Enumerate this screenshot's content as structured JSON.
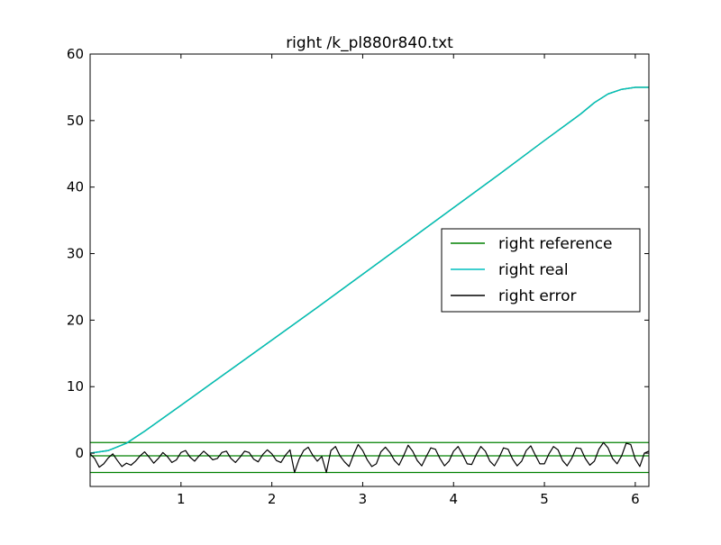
{
  "chart_data": {
    "type": "line",
    "title": "right /k_pl880r840.txt",
    "xlabel": "",
    "ylabel": "",
    "xlim": [
      0.0,
      6.15
    ],
    "ylim": [
      -5,
      60
    ],
    "xticks": [
      1,
      2,
      3,
      4,
      5,
      6
    ],
    "yticks": [
      0,
      10,
      20,
      30,
      40,
      50,
      60
    ],
    "xtick_labels": [
      "1",
      "2",
      "3",
      "4",
      "5",
      "6"
    ],
    "ytick_labels": [
      "0",
      "10",
      "20",
      "30",
      "40",
      "50",
      "60"
    ],
    "grid": false,
    "legend_position": "center-right",
    "reference_levels": [
      1.6,
      -0.4,
      -2.9
    ],
    "series": [
      {
        "name": "right reference",
        "color": "#008000",
        "x": [
          0.0,
          0.2,
          0.4,
          0.6,
          1.0,
          1.5,
          2.0,
          2.5,
          3.0,
          3.5,
          4.0,
          4.5,
          5.0,
          5.4,
          5.55,
          5.7,
          5.85,
          6.0,
          6.15
        ],
        "y": [
          0.0,
          0.4,
          1.5,
          3.3,
          7.2,
          12.1,
          17.0,
          21.9,
          26.9,
          31.9,
          36.9,
          41.9,
          47.0,
          51.0,
          52.7,
          54.0,
          54.7,
          55.0,
          55.0
        ]
      },
      {
        "name": "right real",
        "color": "#00bfbf",
        "x": [
          0.0,
          0.2,
          0.4,
          0.6,
          1.0,
          1.5,
          2.0,
          2.5,
          3.0,
          3.5,
          4.0,
          4.5,
          5.0,
          5.4,
          5.55,
          5.7,
          5.85,
          6.0,
          6.15
        ],
        "y": [
          0.0,
          0.4,
          1.5,
          3.3,
          7.2,
          12.1,
          17.0,
          21.9,
          26.9,
          31.9,
          36.9,
          41.9,
          47.0,
          51.0,
          52.7,
          54.0,
          54.7,
          55.0,
          55.0
        ]
      },
      {
        "name": "right error",
        "color": "#000000",
        "x": [
          0.0,
          0.05,
          0.1,
          0.15,
          0.2,
          0.25,
          0.3,
          0.35,
          0.4,
          0.45,
          0.5,
          0.55,
          0.6,
          0.65,
          0.7,
          0.75,
          0.8,
          0.85,
          0.9,
          0.95,
          1.0,
          1.05,
          1.1,
          1.15,
          1.2,
          1.25,
          1.3,
          1.35,
          1.4,
          1.45,
          1.5,
          1.55,
          1.6,
          1.65,
          1.7,
          1.75,
          1.8,
          1.85,
          1.9,
          1.95,
          2.0,
          2.05,
          2.1,
          2.15,
          2.2,
          2.25,
          2.3,
          2.35,
          2.4,
          2.45,
          2.5,
          2.55,
          2.6,
          2.65,
          2.7,
          2.75,
          2.8,
          2.85,
          2.9,
          2.95,
          3.0,
          3.05,
          3.1,
          3.15,
          3.2,
          3.25,
          3.3,
          3.35,
          3.4,
          3.45,
          3.5,
          3.55,
          3.6,
          3.65,
          3.7,
          3.75,
          3.8,
          3.85,
          3.9,
          3.95,
          4.0,
          4.05,
          4.1,
          4.15,
          4.2,
          4.25,
          4.3,
          4.35,
          4.4,
          4.45,
          4.5,
          4.55,
          4.6,
          4.65,
          4.7,
          4.75,
          4.8,
          4.85,
          4.9,
          4.95,
          5.0,
          5.05,
          5.1,
          5.15,
          5.2,
          5.25,
          5.3,
          5.35,
          5.4,
          5.45,
          5.5,
          5.55,
          5.6,
          5.65,
          5.7,
          5.75,
          5.8,
          5.85,
          5.9,
          5.95,
          6.0,
          6.05,
          6.1,
          6.15
        ],
        "y": [
          -0.1,
          -0.8,
          -2.1,
          -1.6,
          -0.7,
          -0.1,
          -1.1,
          -2.0,
          -1.5,
          -1.8,
          -1.2,
          -0.4,
          0.2,
          -0.6,
          -1.5,
          -0.8,
          0.1,
          -0.5,
          -1.4,
          -1.0,
          0.1,
          0.4,
          -0.6,
          -1.2,
          -0.4,
          0.3,
          -0.3,
          -1.0,
          -0.8,
          0.1,
          0.3,
          -0.8,
          -1.4,
          -0.6,
          0.3,
          0.1,
          -0.9,
          -1.3,
          -0.2,
          0.5,
          -0.1,
          -1.1,
          -1.4,
          -0.3,
          0.5,
          -2.9,
          -0.9,
          0.4,
          0.9,
          -0.3,
          -1.2,
          -0.5,
          -2.9,
          0.4,
          1.0,
          -0.4,
          -1.3,
          -2.0,
          -0.2,
          1.3,
          0.4,
          -1.0,
          -2.0,
          -1.6,
          0.2,
          0.9,
          0.1,
          -1.1,
          -1.8,
          -0.4,
          1.2,
          0.3,
          -1.1,
          -1.9,
          -0.5,
          0.8,
          0.6,
          -0.8,
          -1.9,
          -1.2,
          0.3,
          1.0,
          -0.2,
          -1.6,
          -1.7,
          -0.2,
          1.0,
          0.3,
          -1.2,
          -1.9,
          -0.7,
          0.8,
          0.6,
          -0.9,
          -1.9,
          -1.2,
          0.4,
          1.1,
          -0.3,
          -1.6,
          -1.6,
          -0.1,
          1.0,
          0.5,
          -1.1,
          -1.9,
          -0.8,
          0.8,
          0.7,
          -0.8,
          -1.8,
          -1.2,
          0.6,
          1.6,
          0.8,
          -0.8,
          -1.6,
          -0.4,
          1.5,
          1.3,
          -0.9,
          -2.0,
          0.0,
          0.3
        ]
      }
    ]
  }
}
